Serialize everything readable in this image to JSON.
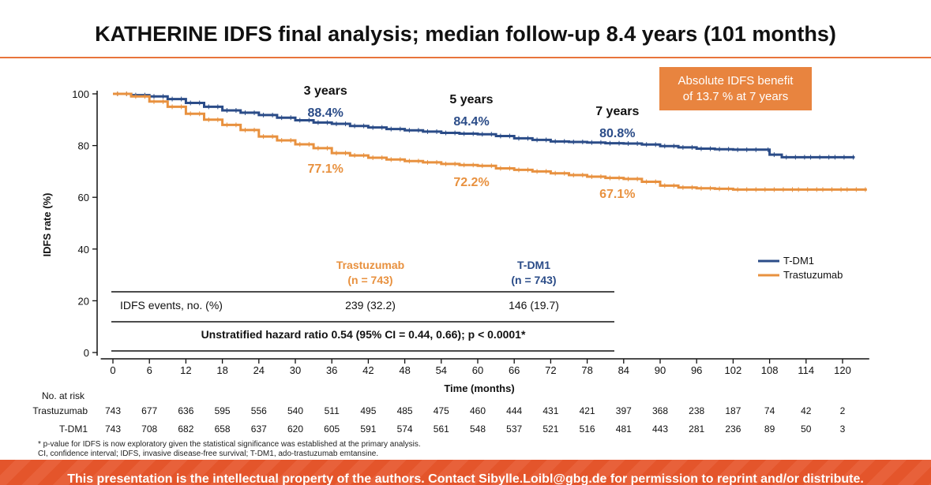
{
  "header": {
    "title": "KATHERINE IDFS final analysis; median follow-up 8.4 years (101 months)"
  },
  "callout": {
    "line1": "Absolute IDFS benefit",
    "line2": "of 13.7 % at 7 years"
  },
  "colors": {
    "tdm1": "#2b4c88",
    "trastuzumab": "#e8913f",
    "accent": "#e8743b"
  },
  "chart_data": {
    "type": "line",
    "title": "",
    "xlabel": "Time (months)",
    "ylabel": "IDFS rate (%)",
    "xlim": [
      0,
      124
    ],
    "ylim": [
      0,
      100
    ],
    "x_ticks": [
      0,
      6,
      12,
      18,
      24,
      30,
      36,
      42,
      48,
      54,
      60,
      66,
      72,
      78,
      84,
      90,
      96,
      102,
      108,
      114,
      120
    ],
    "y_ticks": [
      0,
      20,
      40,
      60,
      80,
      100
    ],
    "legend_position": "right",
    "series": [
      {
        "name": "T-DM1",
        "color": "#2b4c88",
        "points": [
          [
            0,
            100
          ],
          [
            3,
            99.5
          ],
          [
            6,
            99
          ],
          [
            9,
            98
          ],
          [
            12,
            96.5
          ],
          [
            15,
            95
          ],
          [
            18,
            93.6
          ],
          [
            21,
            92.7
          ],
          [
            24,
            91.8
          ],
          [
            27,
            90.8
          ],
          [
            30,
            89.8
          ],
          [
            33,
            88.9
          ],
          [
            36,
            88.4
          ],
          [
            39,
            87.6
          ],
          [
            42,
            87
          ],
          [
            45,
            86.4
          ],
          [
            48,
            85.9
          ],
          [
            51,
            85.4
          ],
          [
            54,
            84.9
          ],
          [
            57,
            84.6
          ],
          [
            60,
            84.4
          ],
          [
            63,
            83.7
          ],
          [
            66,
            82.8
          ],
          [
            69,
            82.2
          ],
          [
            72,
            81.6
          ],
          [
            75,
            81.4
          ],
          [
            78,
            81.2
          ],
          [
            81,
            80.9
          ],
          [
            84,
            80.8
          ],
          [
            87,
            80.4
          ],
          [
            90,
            79.8
          ],
          [
            93,
            79.3
          ],
          [
            96,
            78.8
          ],
          [
            99,
            78.6
          ],
          [
            102,
            78.4
          ],
          [
            105,
            78.4
          ],
          [
            107,
            78.4
          ],
          [
            108,
            76.5
          ],
          [
            110,
            75.5
          ],
          [
            114,
            75.5
          ],
          [
            118,
            75.5
          ],
          [
            122,
            75.5
          ]
        ]
      },
      {
        "name": "Trastuzumab",
        "color": "#e8913f",
        "points": [
          [
            0,
            100
          ],
          [
            3,
            99
          ],
          [
            6,
            97
          ],
          [
            9,
            95
          ],
          [
            12,
            92.3
          ],
          [
            15,
            90
          ],
          [
            18,
            88
          ],
          [
            21,
            86
          ],
          [
            24,
            83.5
          ],
          [
            27,
            82
          ],
          [
            30,
            80.5
          ],
          [
            33,
            79
          ],
          [
            36,
            77.1
          ],
          [
            39,
            76.2
          ],
          [
            42,
            75.3
          ],
          [
            45,
            74.6
          ],
          [
            48,
            74
          ],
          [
            51,
            73.5
          ],
          [
            54,
            72.9
          ],
          [
            57,
            72.5
          ],
          [
            60,
            72.2
          ],
          [
            63,
            71.2
          ],
          [
            66,
            70.6
          ],
          [
            69,
            70
          ],
          [
            72,
            69.3
          ],
          [
            75,
            68.6
          ],
          [
            78,
            68
          ],
          [
            81,
            67.5
          ],
          [
            84,
            67.1
          ],
          [
            87,
            66
          ],
          [
            90,
            64.5
          ],
          [
            93,
            63.8
          ],
          [
            96,
            63.5
          ],
          [
            99,
            63.3
          ],
          [
            102,
            63
          ],
          [
            105,
            63
          ],
          [
            108,
            63
          ],
          [
            112,
            63
          ],
          [
            116,
            63
          ],
          [
            120,
            63
          ],
          [
            124,
            63
          ]
        ]
      }
    ],
    "milestones": [
      {
        "label": "3 years",
        "x": 36,
        "tdm1": "88.4%",
        "trastuzumab": "77.1%"
      },
      {
        "label": "5 years",
        "x": 60,
        "tdm1": "84.4%",
        "trastuzumab": "72.2%"
      },
      {
        "label": "7 years",
        "x": 84,
        "tdm1": "80.8%",
        "trastuzumab": "67.1%"
      }
    ],
    "table": {
      "col_trastuzumab": "Trastuzumab",
      "col_trastuzumab_n": "(n = 743)",
      "col_tdm1": "T-DM1",
      "col_tdm1_n": "(n = 743)",
      "row_label": "IDFS events, no. (%)",
      "trastuzumab_value": "239 (32.2)",
      "tdm1_value": "146 (19.7)",
      "hazard_ratio": "Unstratified hazard ratio 0.54 (95% CI = 0.44, 0.66); p < 0.0001*"
    },
    "at_risk": {
      "title": "No. at risk",
      "rows": [
        {
          "label": "Trastuzumab",
          "values": [
            743,
            677,
            636,
            595,
            556,
            540,
            511,
            495,
            485,
            475,
            460,
            444,
            431,
            421,
            397,
            368,
            238,
            187,
            74,
            42,
            2
          ]
        },
        {
          "label": "T-DM1",
          "values": [
            743,
            708,
            682,
            658,
            637,
            620,
            605,
            591,
            574,
            561,
            548,
            537,
            521,
            516,
            481,
            443,
            281,
            236,
            89,
            50,
            3
          ]
        }
      ]
    }
  },
  "footnotes": [
    "* p-value for IDFS is now exploratory given the statistical significance was established at the primary analysis.",
    "CI, confidence interval; IDFS, invasive disease-free survival; T-DM1, ado-trastuzumab emtansine."
  ],
  "banner": {
    "text": "This presentation is the intellectual property of the authors. Contact Sibylle.Loibl@gbg.de for permission to reprint and/or distribute."
  }
}
